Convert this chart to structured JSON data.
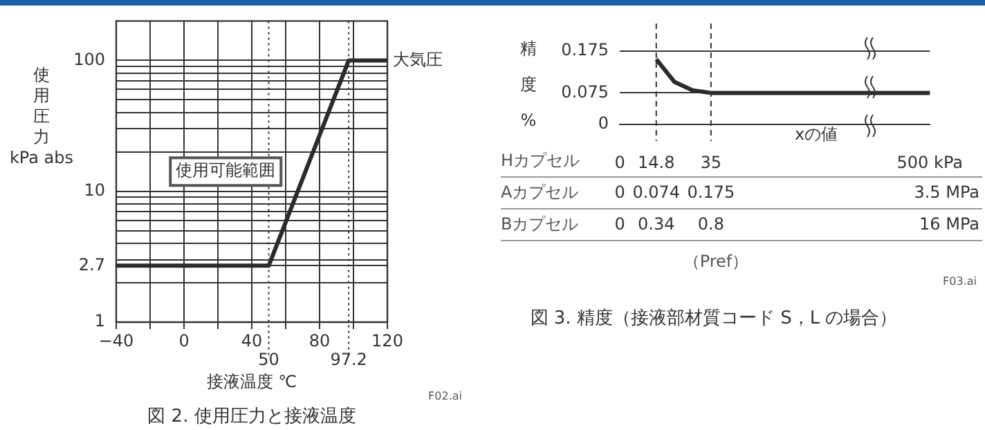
{
  "chart_data": [
    {
      "type": "line",
      "title": "図 2. 使用圧力と接液温度",
      "xlabel": "接液温度 ℃",
      "ylabel": "使用圧力 kPa abs",
      "x": [
        -40,
        50,
        97.2,
        120
      ],
      "values": [
        2.7,
        2.7,
        100,
        100
      ],
      "color": "#2b2b2b",
      "log": "y",
      "xlim": [
        -40,
        120
      ],
      "ylim": [
        1,
        200
      ],
      "xticks": [
        {
          "value": -40,
          "label": "−40"
        },
        {
          "value": -20,
          "label": null
        },
        0,
        {
          "value": 20,
          "label": null
        },
        40,
        {
          "value": 60,
          "label": null
        },
        80,
        {
          "value": 100,
          "label": null
        },
        120
      ],
      "yticks": [
        1,
        {
          "value": 2,
          "label": null
        },
        2.7,
        {
          "value": 3,
          "label": null
        },
        {
          "value": 4,
          "label": null
        },
        {
          "value": 5,
          "label": null
        },
        {
          "value": 6,
          "label": null
        },
        {
          "value": 7,
          "label": null
        },
        {
          "value": 8,
          "label": null
        },
        {
          "value": 9,
          "label": null
        },
        10,
        {
          "value": 20,
          "label": null
        },
        {
          "value": 30,
          "label": null
        },
        {
          "value": 40,
          "label": null
        },
        {
          "value": 50,
          "label": null
        },
        {
          "value": 60,
          "label": null
        },
        {
          "value": 70,
          "label": null
        },
        {
          "value": 80,
          "label": null
        },
        {
          "value": 90,
          "label": null
        },
        100
      ],
      "grid": true,
      "marker": "none",
      "ref_lines": [
        {
          "axis": "x",
          "value": 50,
          "label": "50",
          "line_style": "dotted"
        },
        {
          "axis": "x",
          "value": 97.2,
          "label": "97.2",
          "line_style": "dotted"
        }
      ],
      "annotations": [
        "使用可能範囲",
        {
          "text": "大気圧",
          "x": 120,
          "y": 100
        },
        "F02.ai"
      ]
    },
    {
      "type": "line",
      "title": "図 3. 精度（接液部材質コード S，L の場合）",
      "xlabel": "xの値",
      "ylabel": "精度 %",
      "categories": [
        "0",
        null,
        "14.8",
        null,
        null,
        "35",
        null,
        null,
        null,
        null,
        null,
        null,
        null,
        null,
        null,
        null,
        null,
        "500 kPa"
      ],
      "values": [
        null,
        null,
        0.155,
        0.101,
        0.081,
        0.075,
        0.075,
        0.075,
        null,
        null,
        null,
        null,
        null,
        null,
        null,
        null,
        null,
        0.075
      ],
      "color": "#2b2b2b",
      "ylim": [
        0,
        0.24
      ],
      "yticks": [
        0,
        {
          "value": 0.075,
          "label": "0.075"
        },
        {
          "value": 0.175,
          "label": "0.175"
        }
      ],
      "grid": "y",
      "marker": "none",
      "ref_lines": [
        {
          "axis": "x",
          "value": "14.8",
          "line_style": "dashed"
        },
        {
          "axis": "x",
          "value": "35",
          "line_style": "dashed"
        }
      ],
      "annotations": [
        "Hカプセル",
        "Aカプセル",
        "Bカプセル",
        "（Pref）",
        "F03.ai",
        "0",
        "0.074",
        "0.175",
        "3.5 MPa",
        "0",
        "0.34",
        "0.8",
        "16 MPa"
      ]
    }
  ]
}
